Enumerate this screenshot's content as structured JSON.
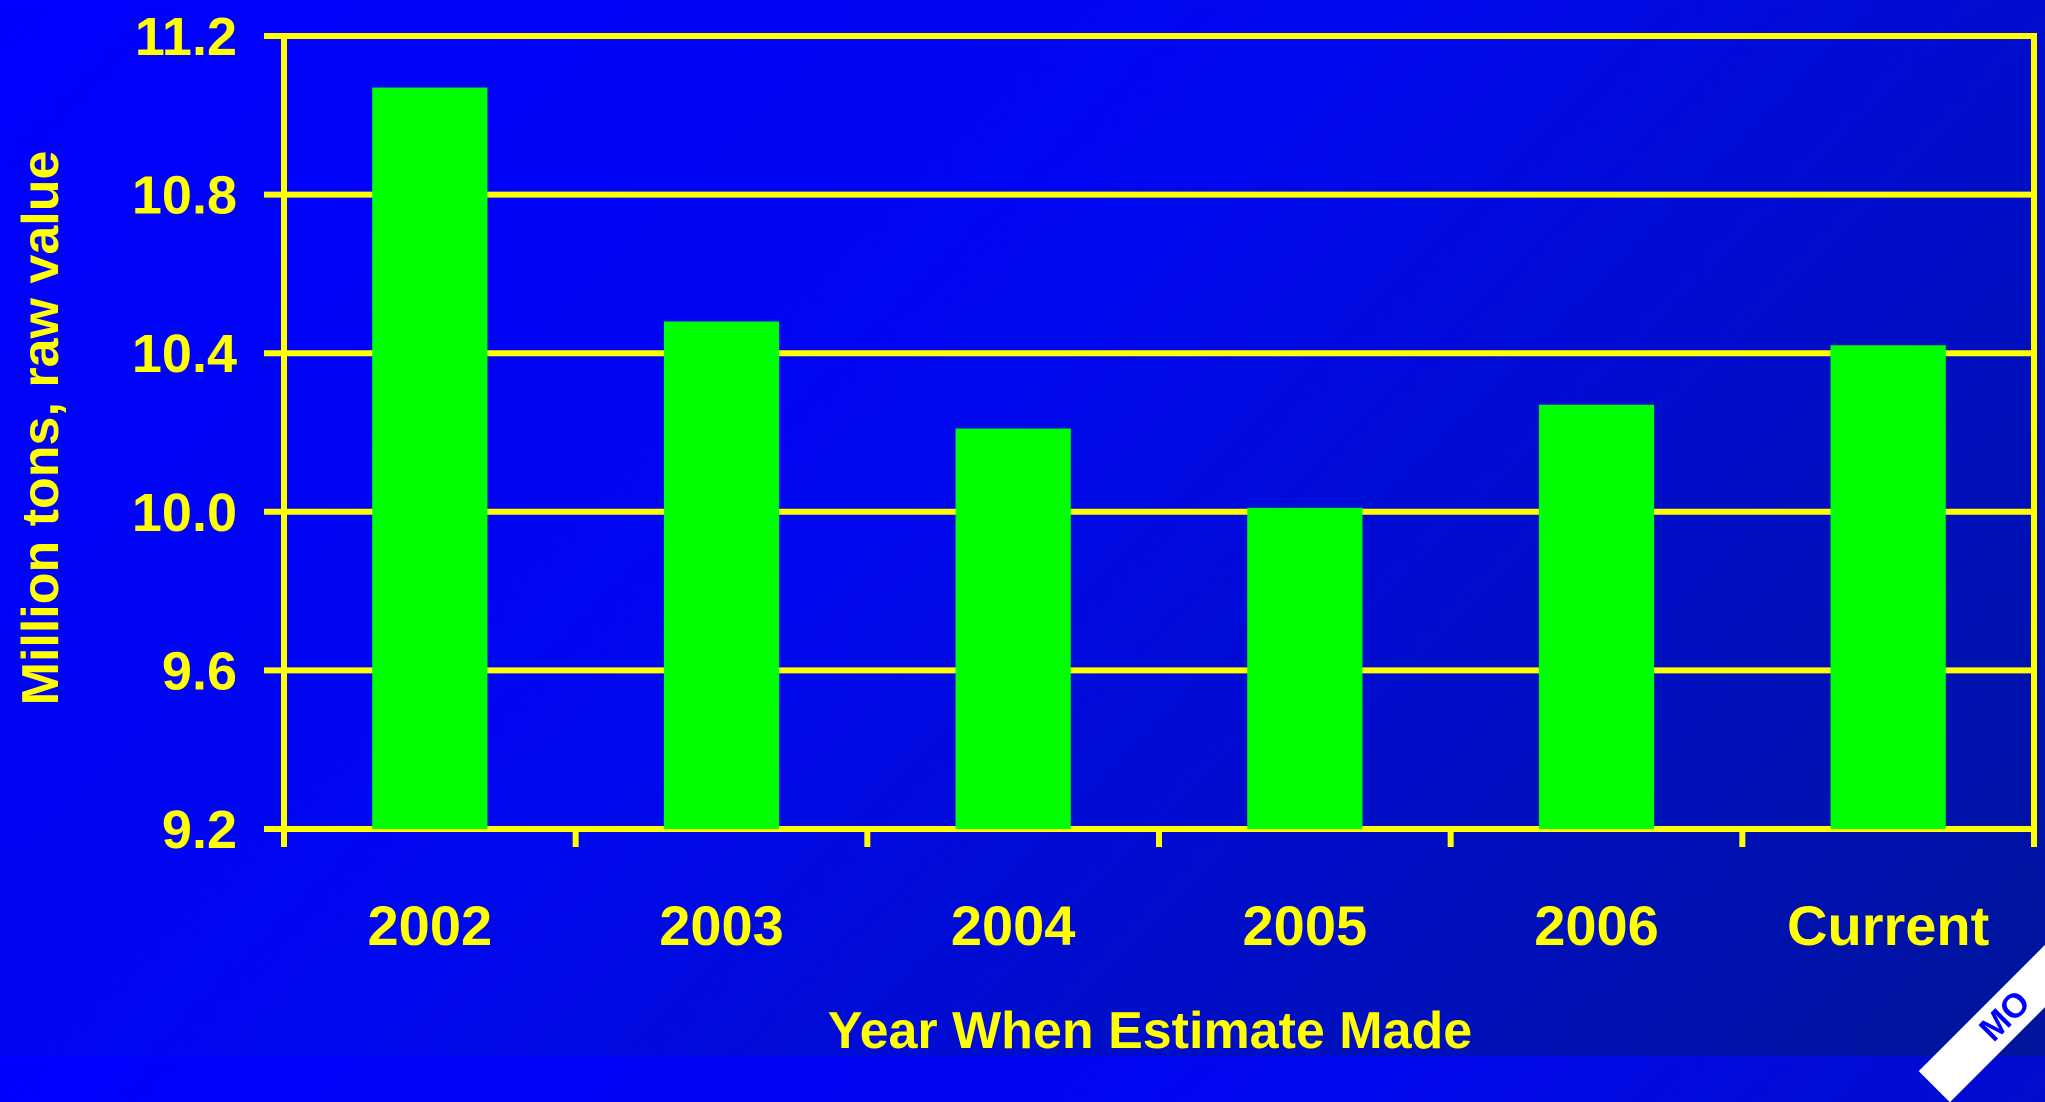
{
  "theme": {
    "background": "#0000ff",
    "axis_color": "#ffff00",
    "bar_color": "#00ff00",
    "text_color": "#ffff00"
  },
  "chart_data": {
    "type": "bar",
    "categories": [
      "2002",
      "2003",
      "2004",
      "2005",
      "2006",
      "Current"
    ],
    "values": [
      11.07,
      10.48,
      10.21,
      10.01,
      10.27,
      10.42
    ],
    "title": "",
    "xlabel": "Year When Estimate Made",
    "ylabel": "Million tons, raw value",
    "ylim": [
      9.2,
      11.2
    ],
    "yticks": [
      "9.2",
      "9.6",
      "10.0",
      "10.4",
      "10.8",
      "11.2"
    ],
    "grid": true,
    "legend": "none"
  },
  "badge": {
    "text": "MO"
  }
}
